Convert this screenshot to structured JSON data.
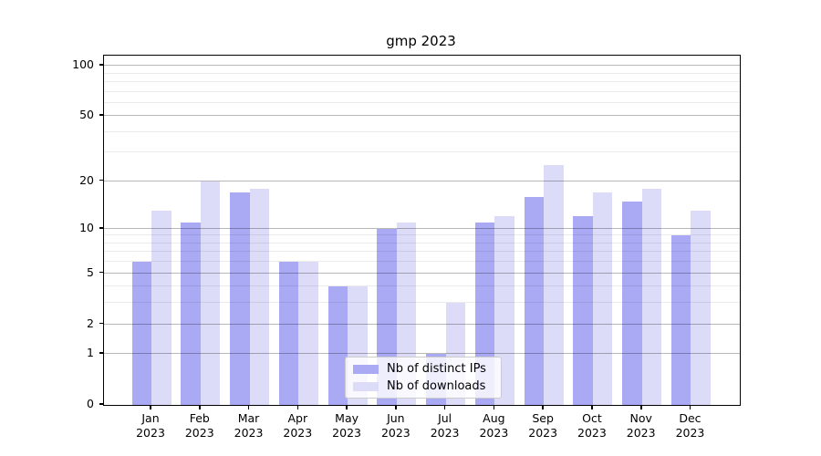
{
  "chart_data": {
    "type": "bar",
    "title": "gmp 2023",
    "categories": [
      "Jan 2023",
      "Feb 2023",
      "Mar 2023",
      "Apr 2023",
      "May 2023",
      "Jun 2023",
      "Jul 2023",
      "Aug 2023",
      "Sep 2023",
      "Oct 2023",
      "Nov 2023",
      "Dec 2023"
    ],
    "series": [
      {
        "name": "Nb of distinct IPs",
        "color": "#a9a9f4",
        "values": [
          6,
          11,
          17,
          6,
          4,
          10,
          1,
          11,
          16,
          12,
          15,
          9
        ]
      },
      {
        "name": "Nb of downloads",
        "color": "#dcdcf8",
        "values": [
          13,
          20,
          18,
          6,
          4,
          11,
          3,
          12,
          25,
          17,
          18,
          13
        ]
      }
    ],
    "yaxis": {
      "scale": "log1p",
      "tick_values": [
        0,
        1,
        2,
        5,
        10,
        20,
        50,
        100
      ],
      "tick_labels": [
        "0",
        "1",
        "2",
        "5",
        "10",
        "20",
        "50",
        "100"
      ],
      "minor_tick_values": [
        3,
        4,
        6,
        7,
        8,
        9,
        30,
        40,
        60,
        70,
        80,
        90
      ],
      "top_value": 114.9
    },
    "grid": true,
    "legend_position": "lower center inside plot",
    "style": {
      "bar_color_ips": "#a9a9f4",
      "bar_color_downloads": "#dcdcf8",
      "grid_major_color": "rgba(0,0,0,0.28)",
      "grid_minor_color": "rgba(0,0,0,0.08)",
      "spine_color": "#000000",
      "background": "#ffffff"
    }
  }
}
